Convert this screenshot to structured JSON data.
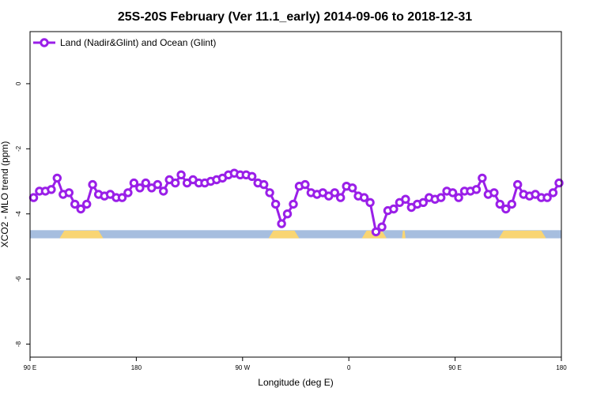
{
  "chart_data": {
    "type": "line",
    "title": "25S-20S February (Ver 11.1_early)   2014-09-06 to 2018-12-31",
    "xlabel": "Longitude (deg E)",
    "ylabel": "XCO2 - MLO trend (ppm)",
    "xlim": [
      90,
      540
    ],
    "ylim": [
      -8.4,
      1.6
    ],
    "x_ticks": [
      {
        "value": 90,
        "label": "90 E"
      },
      {
        "value": 180,
        "label": "180"
      },
      {
        "value": 270,
        "label": "90 W"
      },
      {
        "value": 360,
        "label": "0"
      },
      {
        "value": 450,
        "label": "90 E"
      },
      {
        "value": 540,
        "label": "180"
      }
    ],
    "y_ticks": [
      {
        "value": 0,
        "label": "0"
      },
      {
        "value": -2,
        "label": "-2"
      },
      {
        "value": -4,
        "label": "-4"
      },
      {
        "value": -6,
        "label": "-6"
      },
      {
        "value": -8,
        "label": "-8"
      }
    ],
    "grid": false,
    "legend": {
      "position": "top-left"
    },
    "series": [
      {
        "name": "Land (Nadir&Glint) and Ocean (Glint)",
        "color": "#9a1fe8",
        "x": [
          93,
          98,
          103,
          108,
          113,
          118,
          123,
          128,
          133,
          138,
          143,
          148,
          153,
          158,
          163,
          168,
          173,
          178,
          183,
          188,
          193,
          198,
          203,
          208,
          213,
          218,
          223,
          228,
          233,
          238,
          243,
          248,
          253,
          258,
          263,
          268,
          273,
          278,
          283,
          288,
          293,
          298,
          303,
          308,
          313,
          318,
          323,
          328,
          333,
          338,
          343,
          348,
          353,
          358,
          363,
          368,
          373,
          378,
          383,
          388,
          393,
          398,
          403,
          408,
          413,
          418,
          423,
          428,
          433,
          438,
          443,
          448,
          453,
          458,
          463,
          468,
          473,
          478,
          483,
          488,
          493,
          498,
          503,
          508,
          513,
          518,
          523,
          528,
          533,
          538
        ],
        "y": [
          -3.5,
          -3.3,
          -3.3,
          -3.25,
          -2.9,
          -3.4,
          -3.35,
          -3.7,
          -3.85,
          -3.7,
          -3.1,
          -3.4,
          -3.45,
          -3.4,
          -3.5,
          -3.5,
          -3.35,
          -3.05,
          -3.2,
          -3.05,
          -3.2,
          -3.1,
          -3.3,
          -2.95,
          -3.05,
          -2.8,
          -3.05,
          -2.95,
          -3.05,
          -3.05,
          -3.0,
          -2.95,
          -2.9,
          -2.8,
          -2.75,
          -2.8,
          -2.8,
          -2.85,
          -3.05,
          -3.1,
          -3.35,
          -3.7,
          -4.3,
          -4.0,
          -3.7,
          -3.15,
          -3.1,
          -3.35,
          -3.4,
          -3.35,
          -3.45,
          -3.35,
          -3.5,
          -3.15,
          -3.2,
          -3.45,
          -3.5,
          -3.65,
          -4.55,
          -4.4,
          -3.9,
          -3.85,
          -3.65,
          -3.55,
          -3.8,
          -3.7,
          -3.65,
          -3.5,
          -3.55,
          -3.5,
          -3.3,
          -3.35,
          -3.5,
          -3.3,
          -3.3,
          -3.25,
          -2.9,
          -3.4,
          -3.35,
          -3.7,
          -3.85,
          -3.7,
          -3.1,
          -3.4,
          -3.45,
          -3.4,
          -3.5,
          -3.5,
          -3.35,
          -3.05
        ]
      }
    ],
    "surface_strip": {
      "y_range": [
        -4.75,
        -4.5
      ],
      "ocean_color": "#a6bedf",
      "land_color": "#f9d573",
      "land_ranges": [
        [
          115,
          152
        ],
        [
          292,
          318
        ],
        [
          371,
          392
        ],
        [
          405,
          408
        ],
        [
          487,
          527
        ]
      ]
    }
  }
}
